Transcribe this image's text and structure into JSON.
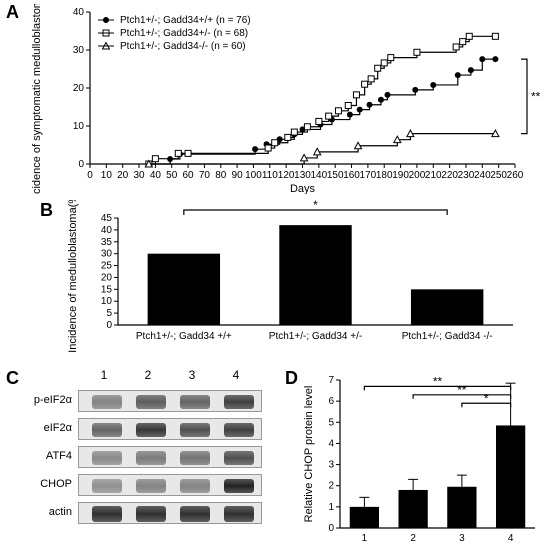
{
  "panelA": {
    "label": "A",
    "type": "line",
    "xlabel": "Days",
    "ylabel": "Incidence of symptomatic medulloblastoma (%)",
    "xlim": [
      0,
      260
    ],
    "xtick_step": 10,
    "ylim": [
      0,
      40
    ],
    "ytick_step": 10,
    "title_fontsize": 11,
    "tick_fontsize": 10,
    "background_color": "#ffffff",
    "axis_color": "#000000",
    "y_bracket_label": "**",
    "legend_pos": "top-left",
    "series": [
      {
        "name": "Ptch1+/-; Gadd34+/+ (n = 76)",
        "marker": "filled-circle",
        "color": "#000000",
        "points": [
          [
            36,
            0
          ],
          [
            49,
            1.3
          ],
          [
            55,
            2.6
          ],
          [
            101,
            3.9
          ],
          [
            108,
            5.2
          ],
          [
            116,
            6.5
          ],
          [
            125,
            7.8
          ],
          [
            130,
            9.1
          ],
          [
            141,
            10.4
          ],
          [
            148,
            11.7
          ],
          [
            159,
            13
          ],
          [
            165,
            14.3
          ],
          [
            171,
            15.6
          ],
          [
            178,
            16.9
          ],
          [
            182,
            18.2
          ],
          [
            199,
            19.5
          ],
          [
            210,
            20.8
          ],
          [
            225,
            23.4
          ],
          [
            233,
            24.7
          ],
          [
            240,
            27.6
          ],
          [
            248,
            27.6
          ]
        ]
      },
      {
        "name": "Ptch1+/-; Gadd34+/- (n = 68)",
        "marker": "open-square",
        "color": "#000000",
        "points": [
          [
            36,
            0
          ],
          [
            40,
            1.4
          ],
          [
            54,
            2.8
          ],
          [
            60,
            2.8
          ],
          [
            109,
            4.2
          ],
          [
            113,
            5.6
          ],
          [
            121,
            7
          ],
          [
            125,
            8.4
          ],
          [
            133,
            9.8
          ],
          [
            140,
            11.2
          ],
          [
            146,
            12.6
          ],
          [
            152,
            14
          ],
          [
            158,
            15.4
          ],
          [
            163,
            18.2
          ],
          [
            168,
            21
          ],
          [
            172,
            22.4
          ],
          [
            176,
            25.2
          ],
          [
            180,
            26.6
          ],
          [
            184,
            28
          ],
          [
            200,
            29.4
          ],
          [
            224,
            30.8
          ],
          [
            228,
            32.2
          ],
          [
            232,
            33.6
          ],
          [
            248,
            33.6
          ]
        ]
      },
      {
        "name": "Ptch1+/-; Gadd34-/- (n = 60)",
        "marker": "open-triangle",
        "color": "#000000",
        "points": [
          [
            36,
            0
          ],
          [
            131,
            1.6
          ],
          [
            139,
            3.2
          ],
          [
            164,
            4.8
          ],
          [
            188,
            6.4
          ],
          [
            196,
            8
          ],
          [
            248,
            8
          ]
        ]
      }
    ]
  },
  "panelB": {
    "label": "B",
    "type": "bar",
    "ylabel": "Incidence of medulloblastoma(%)",
    "ylim": [
      0,
      45
    ],
    "ytick_step": 5,
    "bar_color": "#000000",
    "sig_bracket_label": "*",
    "categories": [
      "Ptch1+/-; Gadd34 +/+",
      "Ptch1+/-; Gadd34 +/-",
      "Ptch1+/-; Gadd34 -/-"
    ],
    "values": [
      30,
      42,
      15
    ]
  },
  "panelC": {
    "label": "C",
    "lanes": [
      "1",
      "2",
      "3",
      "4"
    ],
    "rows": [
      {
        "name": "p-eIF2α",
        "intensity": [
          0.35,
          0.6,
          0.55,
          0.8
        ]
      },
      {
        "name": "eIF2α",
        "intensity": [
          0.55,
          0.85,
          0.7,
          0.8
        ]
      },
      {
        "name": "ATF4",
        "intensity": [
          0.3,
          0.4,
          0.45,
          0.7
        ]
      },
      {
        "name": "CHOP",
        "intensity": [
          0.25,
          0.35,
          0.35,
          1.0
        ]
      },
      {
        "name": "actin",
        "intensity": [
          0.9,
          0.9,
          0.9,
          0.9
        ]
      }
    ],
    "band_color": "#1a1a1a",
    "row_bg": "#e8e8e8"
  },
  "panelD": {
    "label": "D",
    "type": "bar",
    "ylabel": "Relative CHOP protein level",
    "ylim": [
      0,
      7
    ],
    "ytick_step": 1,
    "bar_color": "#000000",
    "categories": [
      "1",
      "2",
      "3",
      "4"
    ],
    "values": [
      1.0,
      1.8,
      1.95,
      4.85
    ],
    "errors": [
      0.45,
      0.5,
      0.55,
      2.0
    ],
    "sig": [
      {
        "from": 0,
        "to": 3,
        "label": "**",
        "y": 6.7
      },
      {
        "from": 1,
        "to": 3,
        "label": "**",
        "y": 6.3
      },
      {
        "from": 2,
        "to": 3,
        "label": "*",
        "y": 5.9
      }
    ]
  }
}
